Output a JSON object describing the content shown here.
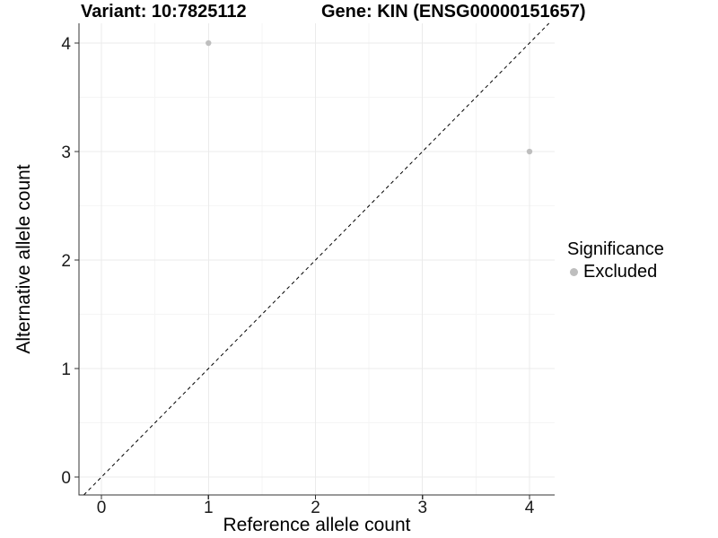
{
  "chart_data": {
    "type": "scatter",
    "title_left": "Variant: 10:7825112",
    "title_right": "Gene: KIN (ENSG00000151657)",
    "xlabel": "Reference allele count",
    "ylabel": "Alternative allele count",
    "xlim": [
      -0.21,
      4.235
    ],
    "ylim": [
      -0.165,
      4.182
    ],
    "xticks": [
      0,
      1,
      2,
      3,
      4
    ],
    "yticks": [
      0,
      1,
      2,
      3,
      4
    ],
    "minor_ticks_x": [
      0.5,
      1.5,
      2.5,
      3.5
    ],
    "minor_ticks_y": [
      0.5,
      1.5,
      2.5,
      3.5
    ],
    "grid": "on",
    "identity_line": {
      "style": "dashed",
      "color": "#000000",
      "equation": "y = x"
    },
    "series": [
      {
        "name": "Excluded",
        "color": "#bebebe",
        "points": [
          {
            "x": 1,
            "y": 4
          },
          {
            "x": 4,
            "y": 3
          }
        ]
      }
    ],
    "legend": {
      "title": "Significance",
      "position": "right",
      "items": [
        {
          "label": "Excluded",
          "color": "#bebebe"
        }
      ]
    },
    "colors": {
      "grid_major": "#ebebeb",
      "grid_minor": "#f5f5f5",
      "axis_line": "#333333",
      "tick_mark": "#333333",
      "tick_text": "#1a1a1a"
    }
  }
}
